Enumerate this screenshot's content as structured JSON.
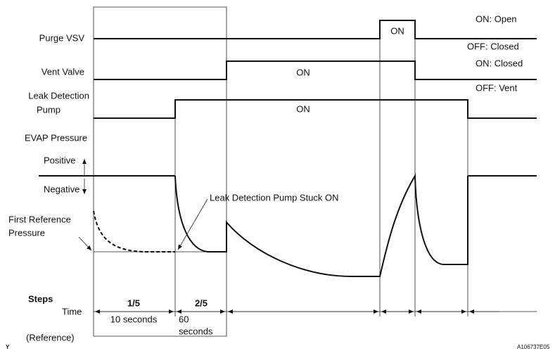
{
  "labels": {
    "purge_vsv": "Purge VSV",
    "vent_valve": "Vent Valve",
    "leak_detection_pump": [
      "Leak Detection",
      "Pump"
    ],
    "evap_pressure": "EVAP Pressure",
    "positive": "Positive",
    "negative": "Negative",
    "first_reference_pressure": [
      "First Reference",
      "Pressure"
    ]
  },
  "states": {
    "purge_on": "ON: Open",
    "purge_off": "OFF: Closed",
    "vent_on": "ON: Closed",
    "vent_off": "OFF: Vent"
  },
  "signals": {
    "purge_on": "ON",
    "vent_on": "ON",
    "pump_on": "ON"
  },
  "annotation": "Leak Detection Pump Stuck ON",
  "steps": {
    "title": "Steps",
    "time": "Time",
    "reference": "(Reference)",
    "items": [
      {
        "step": "1/5",
        "time": [
          "10 seconds"
        ]
      },
      {
        "step": "2/5",
        "time": [
          "60",
          "seconds"
        ]
      }
    ]
  },
  "corner_mark": "Y",
  "figure_id": "A106737E05"
}
